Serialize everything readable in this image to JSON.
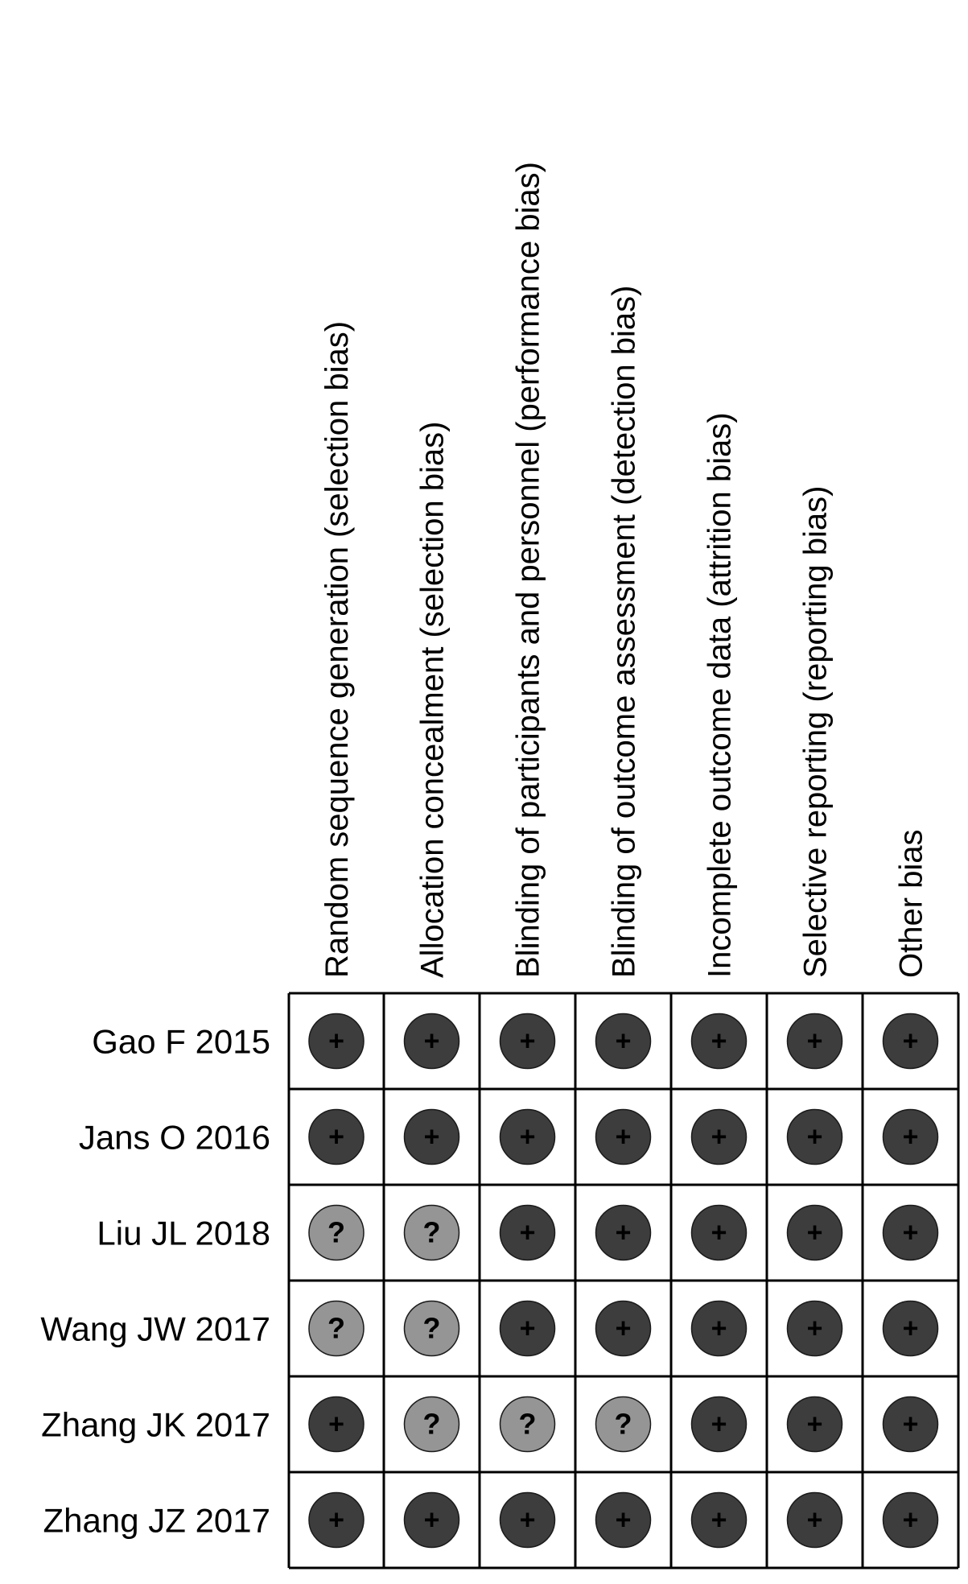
{
  "chart_data": {
    "type": "table",
    "columns": [
      "Random sequence generation (selection bias)",
      "Allocation concealment (selection bias)",
      "Blinding of participants and personnel (performance bias)",
      "Blinding of outcome assessment (detection bias)",
      "Incomplete outcome data (attrition bias)",
      "Selective reporting (reporting bias)",
      "Other bias"
    ],
    "rows": [
      "Gao F 2015",
      "Jans O 2016",
      "Liu JL 2018",
      "Wang JW 2017",
      "Zhang JK 2017",
      "Zhang JZ 2017"
    ],
    "values": [
      [
        "+",
        "+",
        "+",
        "+",
        "+",
        "+",
        "+"
      ],
      [
        "+",
        "+",
        "+",
        "+",
        "+",
        "+",
        "+"
      ],
      [
        "?",
        "?",
        "+",
        "+",
        "+",
        "+",
        "+"
      ],
      [
        "?",
        "?",
        "+",
        "+",
        "+",
        "+",
        "+"
      ],
      [
        "+",
        "?",
        "?",
        "?",
        "+",
        "+",
        "+"
      ],
      [
        "+",
        "+",
        "+",
        "+",
        "+",
        "+",
        "+"
      ]
    ],
    "colors": {
      "+": "#3d3d3d",
      "?": "#959595",
      "grid": "#000000",
      "text": "#000000"
    }
  }
}
